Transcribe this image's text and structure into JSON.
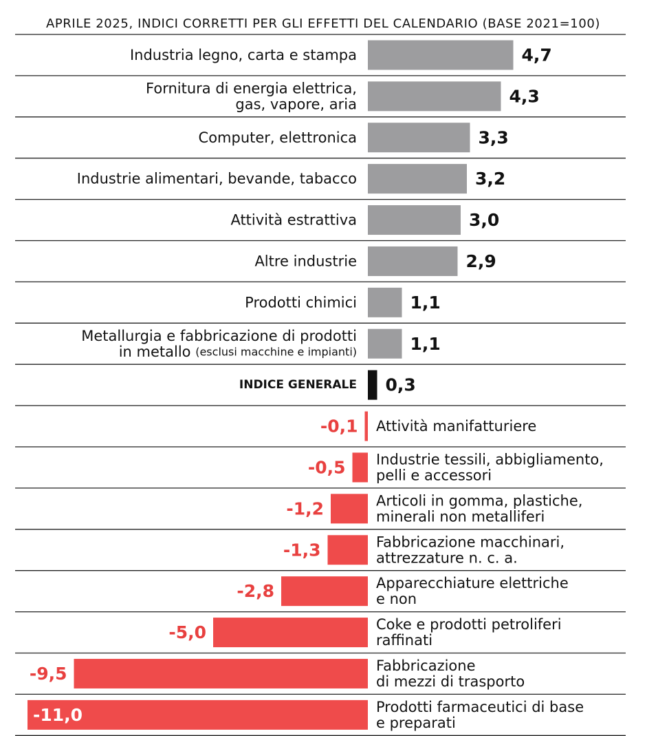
{
  "chart_data": {
    "type": "bar",
    "title": "APRILE 2025, INDICI CORRETTI PER GLI EFFETTI DEL CALENDARIO (BASE 2021=100)",
    "orientation": "horizontal",
    "colors": {
      "positive": "#9d9d9f",
      "total": "#111111",
      "negative": "#ef4b4b",
      "negative_label": "#e8403f"
    },
    "rows": [
      {
        "label": [
          "Industria legno, carta e stampa"
        ],
        "value": 4.7,
        "display": "4,7",
        "kind": "positive"
      },
      {
        "label": [
          "Fornitura di energia elettrica,",
          "gas, vapore, aria"
        ],
        "value": 4.3,
        "display": "4,3",
        "kind": "positive"
      },
      {
        "label": [
          "Computer, elettronica"
        ],
        "value": 3.3,
        "display": "3,3",
        "kind": "positive"
      },
      {
        "label": [
          "Industrie alimentari, bevande, tabacco"
        ],
        "value": 3.2,
        "display": "3,2",
        "kind": "positive"
      },
      {
        "label": [
          "Attività estrattiva"
        ],
        "value": 3.0,
        "display": "3,0",
        "kind": "positive"
      },
      {
        "label": [
          "Altre industrie"
        ],
        "value": 2.9,
        "display": "2,9",
        "kind": "positive"
      },
      {
        "label": [
          "Prodotti chimici"
        ],
        "value": 1.1,
        "display": "1,1",
        "kind": "positive"
      },
      {
        "label": [
          "Metallurgia e fabbricazione di prodotti",
          "in metallo"
        ],
        "label_note": "(esclusi macchine e impianti)",
        "value": 1.1,
        "display": "1,1",
        "kind": "positive"
      },
      {
        "label": [
          "INDICE GENERALE"
        ],
        "value": 0.3,
        "display": "0,3",
        "kind": "total"
      },
      {
        "label": [
          "Attività manifatturiere"
        ],
        "value": -0.1,
        "display": "-0,1",
        "kind": "negative"
      },
      {
        "label": [
          "Industrie tessili, abbigliamento,",
          "pelli e accessori"
        ],
        "value": -0.5,
        "display": "-0,5",
        "kind": "negative"
      },
      {
        "label": [
          "Articoli in gomma, plastiche,",
          "minerali non metalliferi"
        ],
        "value": -1.2,
        "display": "-1,2",
        "kind": "negative"
      },
      {
        "label": [
          "Fabbricazione macchinari,",
          "attrezzature n. c. a."
        ],
        "value": -1.3,
        "display": "-1,3",
        "kind": "negative"
      },
      {
        "label": [
          "Apparecchiature elettriche",
          "e non"
        ],
        "value": -2.8,
        "display": "-2,8",
        "kind": "negative"
      },
      {
        "label": [
          "Coke e prodotti petroliferi",
          "raffinati"
        ],
        "value": -5.0,
        "display": "-5,0",
        "kind": "negative"
      },
      {
        "label": [
          "Fabbricazione",
          "di mezzi di trasporto"
        ],
        "value": -9.5,
        "display": "-9,5",
        "kind": "negative"
      },
      {
        "label": [
          "Prodotti farmaceutici di base",
          "e preparati"
        ],
        "value": -11.0,
        "display": "-11,0",
        "kind": "negative"
      }
    ]
  }
}
